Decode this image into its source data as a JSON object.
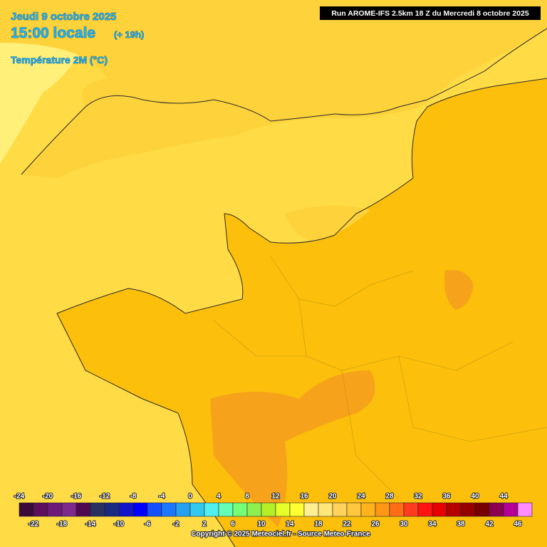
{
  "header": {
    "date": "Jeudi 9 octobre 2025",
    "time": "15:00 locale",
    "offset": "(+ 19h)",
    "variable": "Température 2M (°C)",
    "run": "Run AROME-IFS 2.5km 18 Z du Mercredi 8 octobre 2025"
  },
  "legend": {
    "ticks": [
      -24,
      -22,
      -20,
      -18,
      -16,
      -14,
      -12,
      -10,
      -8,
      -6,
      -4,
      -2,
      0,
      2,
      4,
      6,
      8,
      10,
      12,
      14,
      16,
      18,
      20,
      22,
      24,
      26,
      28,
      30,
      32,
      34,
      36,
      38,
      40,
      42,
      44,
      46
    ],
    "colors": [
      "#3a0a3a",
      "#5c0f5c",
      "#6e1a7a",
      "#7d2a8c",
      "#500a50",
      "#2a3060",
      "#1a2a80",
      "#1414c8",
      "#0000ff",
      "#1450ff",
      "#1e78ff",
      "#28a0f0",
      "#32c8f0",
      "#50f0f0",
      "#64ffb4",
      "#78ff78",
      "#8cf050",
      "#b4f028",
      "#e6ff28",
      "#ffff32",
      "#fff096",
      "#ffe678",
      "#ffd25a",
      "#ffc83c",
      "#ffb41e",
      "#ff9614",
      "#ff6e14",
      "#ff3c1e",
      "#ff1414",
      "#e60000",
      "#b40000",
      "#960000",
      "#780000",
      "#8c0050",
      "#b40096",
      "#ff8cff"
    ]
  },
  "footer": {
    "copyright": "Copyright © 2025 Meteociel.fr - Source Meteo-France"
  }
}
